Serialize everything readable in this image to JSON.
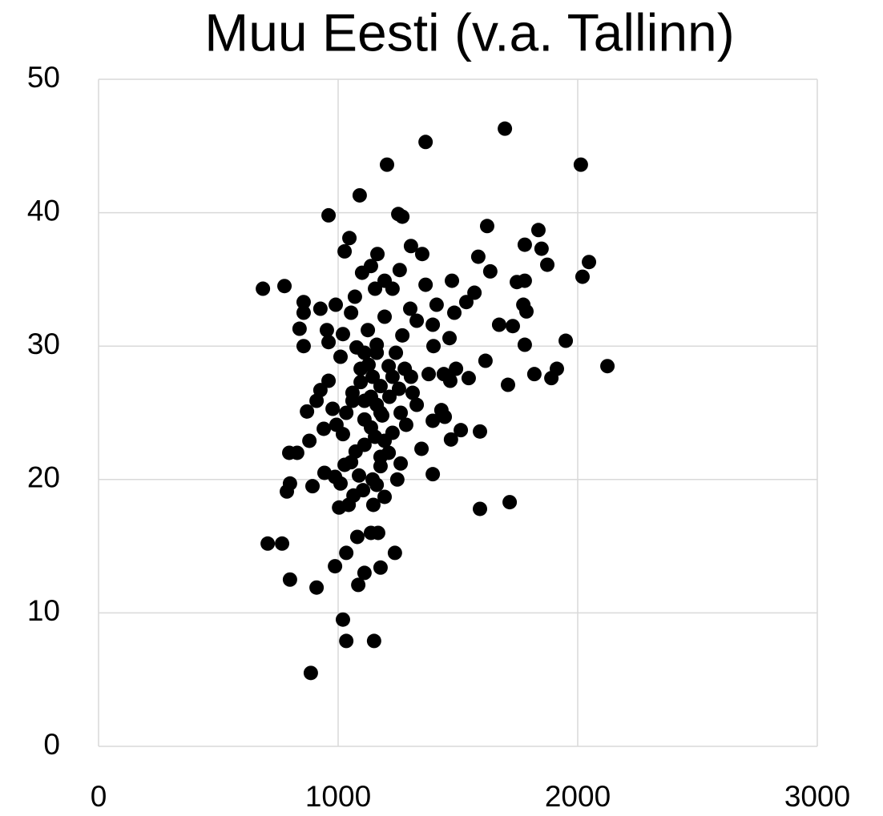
{
  "chart_data": {
    "type": "scatter",
    "title": "Muu Eesti (v.a. Tallinn)",
    "color": "#000000",
    "grid": true,
    "xlim": [
      0,
      3000
    ],
    "xticks": [
      0,
      1000,
      2000,
      3000
    ],
    "ylim": [
      0,
      50
    ],
    "yticks": [
      0,
      10,
      20,
      30,
      40,
      50
    ],
    "x": [
      1696,
      1365,
      1204,
      2013,
      1090,
      960,
      1251,
      1268,
      1622,
      1047,
      1836,
      1779,
      1849,
      1027,
      1304,
      1164,
      1351,
      1585,
      1873,
      2047,
      1635,
      1257,
      1137,
      2020,
      1100,
      686,
      776,
      1475,
      1746,
      1779,
      1194,
      1365,
      1569,
      1154,
      1227,
      1070,
      1535,
      856,
      926,
      990,
      1773,
      1301,
      1411,
      856,
      1786,
      1485,
      1054,
      1194,
      1328,
      1672,
      1729,
      839,
      953,
      1124,
      1395,
      1020,
      1268,
      1465,
      1950,
      960,
      1779,
      856,
      1398,
      1077,
      1161,
      1241,
      1010,
      1615,
      2124,
      1127,
      1211,
      1492,
      1913,
      1819,
      1378,
      1441,
      1304,
      1890,
      1545,
      960,
      1468,
      1709,
      1094,
      1177,
      1254,
      926,
      1060,
      1311,
      1137,
      1214,
      1110,
      910,
      1328,
      1161,
      977,
      870,
      1431,
      1261,
      1034,
      1184,
      1445,
      1110,
      1395,
      993,
      1284,
      940,
      1137,
      1512,
      1592,
      1020,
      1227,
      1154,
      1471,
      880,
      1194,
      1110,
      1348,
      1073,
      796,
      829,
      1211,
      1177,
      1054,
      1261,
      1027,
      1177,
      1395,
      943,
      987,
      1087,
      1144,
      1247,
      799,
      1010,
      893,
      1161,
      786,
      1104,
      1064,
      1194,
      1716,
      1147,
      1044,
      1592,
      1004,
      1137,
      1167,
      1080,
      706,
      766,
      1237,
      1034,
      1177,
      987,
      1110,
      799,
      1084,
      910,
      1020,
      1034,
      1150,
      886,
      1094,
      1144,
      1060,
      1227,
      1161,
      1110,
      1177,
      1278
    ],
    "values": [
      46.3,
      45.3,
      43.6,
      43.6,
      41.3,
      39.8,
      39.9,
      39.7,
      39.0,
      38.1,
      38.7,
      37.6,
      37.3,
      37.1,
      37.5,
      36.9,
      36.9,
      36.7,
      36.1,
      36.3,
      35.6,
      35.7,
      36.0,
      35.2,
      35.5,
      34.3,
      34.5,
      34.9,
      34.8,
      34.9,
      34.9,
      34.6,
      34.0,
      34.3,
      34.3,
      33.7,
      33.3,
      33.3,
      32.8,
      33.1,
      33.1,
      32.8,
      33.1,
      32.5,
      32.6,
      32.5,
      32.5,
      32.2,
      31.9,
      31.6,
      31.5,
      31.3,
      31.2,
      31.2,
      31.6,
      30.9,
      30.8,
      30.6,
      30.4,
      30.3,
      30.1,
      30.0,
      30.0,
      29.9,
      29.5,
      29.5,
      29.2,
      28.9,
      28.5,
      28.6,
      28.5,
      28.3,
      28.3,
      27.9,
      27.9,
      27.9,
      27.7,
      27.6,
      27.6,
      27.4,
      27.4,
      27.1,
      27.3,
      27.0,
      26.8,
      26.7,
      26.5,
      26.5,
      26.2,
      26.2,
      25.9,
      25.9,
      25.6,
      25.6,
      25.3,
      25.1,
      25.2,
      25.0,
      25.0,
      24.8,
      24.7,
      24.5,
      24.4,
      24.1,
      24.1,
      23.8,
      23.9,
      23.7,
      23.6,
      23.4,
      23.5,
      23.2,
      23.0,
      22.9,
      22.9,
      22.6,
      22.3,
      22.1,
      22.0,
      22.0,
      22.0,
      21.7,
      21.3,
      21.2,
      21.1,
      21.0,
      20.4,
      20.5,
      20.2,
      20.3,
      20.0,
      20.0,
      19.7,
      19.7,
      19.5,
      19.6,
      19.1,
      19.2,
      18.8,
      18.7,
      18.3,
      18.1,
      18.1,
      17.8,
      17.9,
      16.0,
      16.0,
      15.7,
      15.2,
      15.2,
      14.5,
      14.5,
      13.4,
      13.5,
      13.0,
      12.5,
      12.1,
      11.9,
      9.5,
      7.9,
      7.9,
      5.5,
      28.3,
      27.7,
      25.9,
      27.7,
      30.1,
      29.5,
      25.0,
      28.3
    ]
  }
}
